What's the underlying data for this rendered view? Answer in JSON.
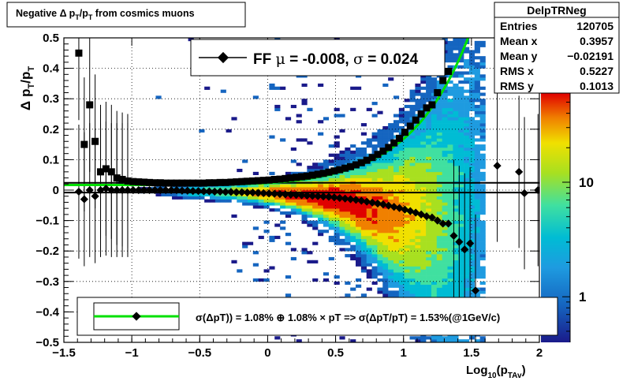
{
  "title": {
    "pre": "Negative ",
    "delta": "Δ",
    "p": "p",
    "T": "T",
    "slash": "/p",
    "T2": "T",
    "post": " from cosmics muons"
  },
  "yaxis_label": {
    "delta": "Δ",
    "p": "p",
    "T": "T",
    "slash": "/p",
    "T2": "T"
  },
  "xaxis_label": {
    "log": "Log",
    "sub10": "10",
    "p": "(p",
    "sub": "TAv",
    "close": ")"
  },
  "stats": {
    "name": "DelpTRNeg",
    "rows": [
      {
        "label": "Entries",
        "value": "120705"
      },
      {
        "label": "Mean x",
        "value": "0.3957"
      },
      {
        "label": "Mean y",
        "value": "−0.02191"
      },
      {
        "label": "RMS x",
        "value": "0.5227"
      },
      {
        "label": "RMS y",
        "value": "0.1013"
      }
    ]
  },
  "fit_legend": {
    "pre": "FF ",
    "mu": "μ",
    "mid": " = -0.008, ",
    "sigma": "σ",
    "post": " =   0.024"
  },
  "bottom_legend": {
    "text": "σ(ΔpT)) =  1.08% ⊕  1.08% × pT => σ(ΔpT/pT) =  1.53%(@1GeV/c)"
  },
  "colors": {
    "fit_line": "#00e000",
    "markers": "#000000",
    "frame": "#000000"
  },
  "chart_data": {
    "type": "heatmap",
    "xlim": [
      -1.5,
      2.0
    ],
    "ylim": [
      -0.5,
      0.5
    ],
    "x_ticks": [
      -1.5,
      -1,
      -0.5,
      0,
      0.5,
      1,
      1.5,
      2
    ],
    "x_tick_labels": [
      "−1.5",
      "−1",
      "−0.5",
      "0",
      "0.5",
      "1",
      "1.5",
      "2"
    ],
    "y_ticks": [
      -0.5,
      -0.4,
      -0.3,
      -0.2,
      -0.1,
      0,
      0.1,
      0.2,
      0.3,
      0.4,
      0.5
    ],
    "y_tick_labels": [
      "−0.5",
      "−0.4",
      "−0.3",
      "−0.2",
      "−0.1",
      "0",
      "0.1",
      "0.2",
      "0.3",
      "0.4",
      "0.5"
    ],
    "z_scale": "log",
    "z_tick_labels": [
      "1",
      "10"
    ],
    "grid": true,
    "rms_points": {
      "x": [
        -1.39,
        -1.35,
        -1.31,
        -1.27,
        -1.23,
        -1.19,
        -1.15,
        -1.11,
        -1.07,
        -1.03,
        -0.99,
        -0.95,
        -0.91,
        -0.87,
        -0.83,
        -0.79,
        -0.75,
        -0.71,
        -0.67,
        -0.63,
        -0.59,
        -0.55,
        -0.51,
        -0.47,
        -0.43,
        -0.39,
        -0.35,
        -0.31,
        -0.27,
        -0.23,
        -0.19,
        -0.15,
        -0.11,
        -0.07,
        -0.03,
        0.01,
        0.05,
        0.09,
        0.13,
        0.17,
        0.21,
        0.25,
        0.29,
        0.33,
        0.37,
        0.41,
        0.45,
        0.49,
        0.53,
        0.57,
        0.61,
        0.65,
        0.69,
        0.73,
        0.77,
        0.81,
        0.85,
        0.89,
        0.93,
        0.97,
        1.01,
        1.05,
        1.09,
        1.13,
        1.17,
        1.21,
        1.25,
        1.29,
        1.33
      ],
      "y": [
        0.45,
        0.15,
        0.28,
        0.16,
        0.06,
        0.07,
        0.06,
        0.04,
        0.035,
        0.03,
        0.028,
        0.027,
        0.026,
        0.025,
        0.024,
        0.024,
        0.023,
        0.023,
        0.023,
        0.023,
        0.023,
        0.023,
        0.023,
        0.023,
        0.024,
        0.024,
        0.025,
        0.025,
        0.026,
        0.027,
        0.028,
        0.029,
        0.03,
        0.031,
        0.032,
        0.033,
        0.035,
        0.036,
        0.038,
        0.04,
        0.042,
        0.044,
        0.046,
        0.049,
        0.052,
        0.055,
        0.059,
        0.063,
        0.067,
        0.072,
        0.077,
        0.083,
        0.09,
        0.098,
        0.107,
        0.117,
        0.128,
        0.14,
        0.155,
        0.17,
        0.19,
        0.21,
        0.23,
        0.25,
        0.27,
        0.28,
        0.32,
        0.36,
        0.39
      ]
    },
    "mean_points": {
      "x": [
        -1.39,
        -1.35,
        -1.31,
        -1.27,
        -1.23,
        -1.19,
        -1.15,
        -1.11,
        -1.07,
        -1.03,
        -0.99,
        -0.95,
        -0.91,
        -0.87,
        -0.83,
        -0.79,
        -0.75,
        -0.71,
        -0.67,
        -0.63,
        -0.59,
        -0.55,
        -0.51,
        -0.47,
        -0.43,
        -0.39,
        -0.35,
        -0.31,
        -0.27,
        -0.23,
        -0.19,
        -0.15,
        -0.11,
        -0.07,
        -0.03,
        0.01,
        0.05,
        0.09,
        0.13,
        0.17,
        0.21,
        0.25,
        0.29,
        0.33,
        0.37,
        0.41,
        0.45,
        0.49,
        0.53,
        0.57,
        0.61,
        0.65,
        0.69,
        0.73,
        0.77,
        0.81,
        0.85,
        0.89,
        0.93,
        0.97,
        1.01,
        1.05,
        1.09,
        1.13,
        1.17,
        1.21,
        1.25,
        1.29,
        1.33,
        1.37,
        1.41,
        1.45,
        1.49,
        1.53,
        1.69,
        1.85,
        1.89,
        1.99
      ],
      "y": [
        -0.005,
        -0.03,
        0.0,
        -0.02,
        0.0,
        0.005,
        0.0,
        0.0,
        0.0,
        0.0,
        0.0,
        0.0,
        0.0,
        0.0,
        0.0,
        0.0,
        0.0,
        0.0,
        0.0,
        -0.002,
        -0.002,
        -0.003,
        -0.003,
        -0.004,
        -0.004,
        -0.005,
        -0.005,
        -0.006,
        -0.006,
        -0.007,
        -0.007,
        -0.008,
        -0.008,
        -0.009,
        -0.01,
        -0.011,
        -0.012,
        -0.013,
        -0.014,
        -0.015,
        -0.016,
        -0.017,
        -0.018,
        -0.019,
        -0.02,
        -0.021,
        -0.022,
        -0.024,
        -0.026,
        -0.028,
        -0.03,
        -0.032,
        -0.035,
        -0.038,
        -0.041,
        -0.044,
        -0.047,
        -0.051,
        -0.055,
        -0.059,
        -0.064,
        -0.069,
        -0.074,
        -0.08,
        -0.086,
        -0.09,
        -0.1,
        -0.11,
        -0.11,
        -0.15,
        -0.17,
        -0.195,
        -0.175,
        -0.33,
        0.08,
        0.06,
        -0.01,
        0.0
      ]
    },
    "fit_curve": {
      "sigma0_percent": 1.08,
      "sigma1_percent": 1.08,
      "mean": -0.008,
      "sigma": 0.024
    },
    "rms_line_y": 0.024,
    "mean_line_y": -0.008
  }
}
